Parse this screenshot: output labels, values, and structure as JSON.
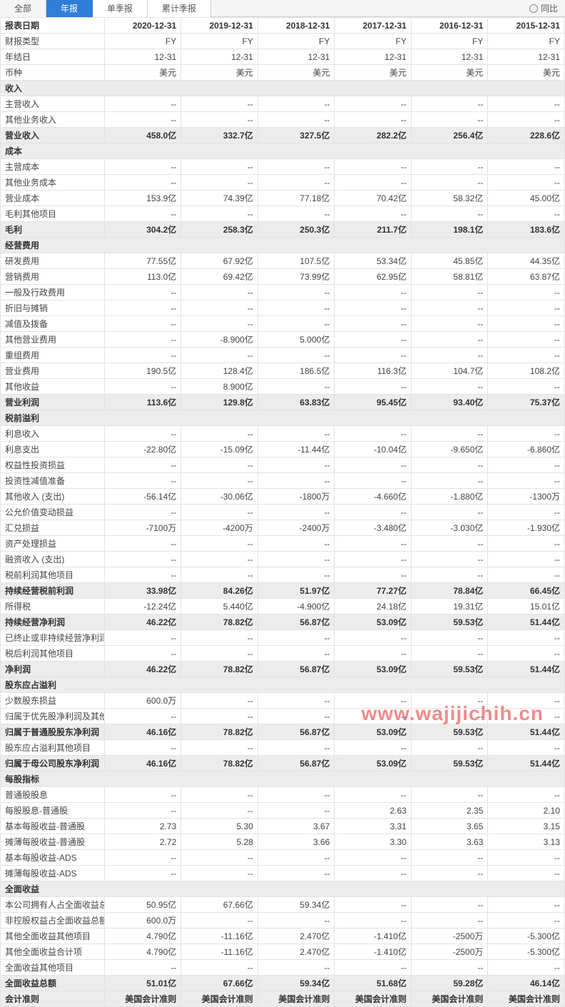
{
  "tabs": {
    "all": "全部",
    "annual": "年报",
    "single": "单季报",
    "cumulative": "累计季报"
  },
  "yoy_label": "同比",
  "watermark": "www.wajijichih.cn",
  "columns": [
    "2020-12-31",
    "2019-12-31",
    "2018-12-31",
    "2017-12-31",
    "2016-12-31",
    "2015-12-31"
  ],
  "header_label": "报表日期",
  "rows": [
    {
      "t": "r",
      "l": "财报类型",
      "v": [
        "FY",
        "FY",
        "FY",
        "FY",
        "FY",
        "FY"
      ]
    },
    {
      "t": "r",
      "l": "年结日",
      "v": [
        "12-31",
        "12-31",
        "12-31",
        "12-31",
        "12-31",
        "12-31"
      ]
    },
    {
      "t": "r",
      "l": "币种",
      "v": [
        "美元",
        "美元",
        "美元",
        "美元",
        "美元",
        "美元"
      ]
    },
    {
      "t": "s",
      "l": "收入"
    },
    {
      "t": "r",
      "l": "主营收入",
      "v": [
        "--",
        "--",
        "--",
        "--",
        "--",
        "--"
      ]
    },
    {
      "t": "r",
      "l": "其他业务收入",
      "v": [
        "--",
        "--",
        "--",
        "--",
        "--",
        "--"
      ]
    },
    {
      "t": "b",
      "l": "营业收入",
      "v": [
        "458.0亿",
        "332.7亿",
        "327.5亿",
        "282.2亿",
        "256.4亿",
        "228.6亿"
      ]
    },
    {
      "t": "s",
      "l": "成本"
    },
    {
      "t": "r",
      "l": "主营成本",
      "v": [
        "--",
        "--",
        "--",
        "--",
        "--",
        "--"
      ]
    },
    {
      "t": "r",
      "l": "其他业务成本",
      "v": [
        "--",
        "--",
        "--",
        "--",
        "--",
        "--"
      ]
    },
    {
      "t": "r",
      "l": "营业成本",
      "v": [
        "153.9亿",
        "74.39亿",
        "77.18亿",
        "70.42亿",
        "58.32亿",
        "45.00亿"
      ]
    },
    {
      "t": "r",
      "l": "毛利其他项目",
      "v": [
        "--",
        "--",
        "--",
        "--",
        "--",
        "--"
      ]
    },
    {
      "t": "b",
      "l": "毛利",
      "v": [
        "304.2亿",
        "258.3亿",
        "250.3亿",
        "211.7亿",
        "198.1亿",
        "183.6亿"
      ]
    },
    {
      "t": "s",
      "l": "经营费用"
    },
    {
      "t": "r",
      "l": "研发费用",
      "v": [
        "77.55亿",
        "67.92亿",
        "107.5亿",
        "53.34亿",
        "45.85亿",
        "44.35亿"
      ]
    },
    {
      "t": "r",
      "l": "营销费用",
      "v": [
        "113.0亿",
        "69.42亿",
        "73.99亿",
        "62.95亿",
        "58.81亿",
        "63.87亿"
      ]
    },
    {
      "t": "r",
      "l": "一般及行政费用",
      "v": [
        "--",
        "--",
        "--",
        "--",
        "--",
        "--"
      ]
    },
    {
      "t": "r",
      "l": "折旧与摊销",
      "v": [
        "--",
        "--",
        "--",
        "--",
        "--",
        "--"
      ]
    },
    {
      "t": "r",
      "l": "减值及拨备",
      "v": [
        "--",
        "--",
        "--",
        "--",
        "--",
        "--"
      ]
    },
    {
      "t": "r",
      "l": "其他营业费用",
      "v": [
        "--",
        "-8.900亿",
        "5.000亿",
        "--",
        "--",
        "--"
      ]
    },
    {
      "t": "r",
      "l": "重组费用",
      "v": [
        "--",
        "--",
        "--",
        "--",
        "--",
        "--"
      ]
    },
    {
      "t": "r",
      "l": "营业费用",
      "v": [
        "190.5亿",
        "128.4亿",
        "186.5亿",
        "116.3亿",
        "104.7亿",
        "108.2亿"
      ]
    },
    {
      "t": "r",
      "l": "其他收益",
      "v": [
        "--",
        "8.900亿",
        "--",
        "--",
        "--",
        "--"
      ]
    },
    {
      "t": "b",
      "l": "营业利润",
      "v": [
        "113.6亿",
        "129.8亿",
        "63.83亿",
        "95.45亿",
        "93.40亿",
        "75.37亿"
      ]
    },
    {
      "t": "s",
      "l": "税前溢利"
    },
    {
      "t": "r",
      "l": "利息收入",
      "v": [
        "--",
        "--",
        "--",
        "--",
        "--",
        "--"
      ]
    },
    {
      "t": "r",
      "l": "利息支出",
      "v": [
        "-22.80亿",
        "-15.09亿",
        "-11.44亿",
        "-10.04亿",
        "-9.650亿",
        "-6.860亿"
      ]
    },
    {
      "t": "r",
      "l": "权益性投资损益",
      "v": [
        "--",
        "--",
        "--",
        "--",
        "--",
        "--"
      ]
    },
    {
      "t": "r",
      "l": "投资性减值准备",
      "v": [
        "--",
        "--",
        "--",
        "--",
        "--",
        "--"
      ]
    },
    {
      "t": "r",
      "l": "其他收入 (支出)",
      "v": [
        "-56.14亿",
        "-30.06亿",
        "-1800万",
        "-4.660亿",
        "-1.880亿",
        "-1300万"
      ]
    },
    {
      "t": "r",
      "l": "公允价值变动损益",
      "v": [
        "--",
        "--",
        "--",
        "--",
        "--",
        "--"
      ]
    },
    {
      "t": "r",
      "l": "汇兑损益",
      "v": [
        "-7100万",
        "-4200万",
        "-2400万",
        "-3.480亿",
        "-3.030亿",
        "-1.930亿"
      ]
    },
    {
      "t": "r",
      "l": "资产处理损益",
      "v": [
        "--",
        "--",
        "--",
        "--",
        "--",
        "--"
      ]
    },
    {
      "t": "r",
      "l": "融资收入 (支出)",
      "v": [
        "--",
        "--",
        "--",
        "--",
        "--",
        "--"
      ]
    },
    {
      "t": "r",
      "l": "税前利润其他项目",
      "v": [
        "--",
        "--",
        "--",
        "--",
        "--",
        "--"
      ]
    },
    {
      "t": "b",
      "l": "持续经营税前利润",
      "v": [
        "33.98亿",
        "84.26亿",
        "51.97亿",
        "77.27亿",
        "78.84亿",
        "66.45亿"
      ]
    },
    {
      "t": "r",
      "l": "所得税",
      "v": [
        "-12.24亿",
        "5.440亿",
        "-4.900亿",
        "24.18亿",
        "19.31亿",
        "15.01亿"
      ]
    },
    {
      "t": "b",
      "l": "持续经营净利润",
      "v": [
        "46.22亿",
        "78.82亿",
        "56.87亿",
        "53.09亿",
        "59.53亿",
        "51.44亿"
      ]
    },
    {
      "t": "r",
      "l": "已终止或非持续经营净利润",
      "v": [
        "--",
        "--",
        "--",
        "--",
        "--",
        "--"
      ]
    },
    {
      "t": "r",
      "l": "税后利润其他项目",
      "v": [
        "--",
        "--",
        "--",
        "--",
        "--",
        "--"
      ]
    },
    {
      "t": "b",
      "l": "净利润",
      "v": [
        "46.22亿",
        "78.82亿",
        "56.87亿",
        "53.09亿",
        "59.53亿",
        "51.44亿"
      ]
    },
    {
      "t": "s",
      "l": "股东应占溢利"
    },
    {
      "t": "r",
      "l": "少数股东损益",
      "v": [
        "600.0万",
        "--",
        "--",
        "--",
        "--",
        "--"
      ]
    },
    {
      "t": "r",
      "l": "归属于优先股净利润及其他项",
      "v": [
        "--",
        "--",
        "--",
        "--",
        "--",
        "--"
      ]
    },
    {
      "t": "b",
      "l": "归属于普通股股东净利润",
      "v": [
        "46.16亿",
        "78.82亿",
        "56.87亿",
        "53.09亿",
        "59.53亿",
        "51.44亿"
      ]
    },
    {
      "t": "r",
      "l": "股东应占溢利其他项目",
      "v": [
        "--",
        "--",
        "--",
        "--",
        "--",
        "--"
      ]
    },
    {
      "t": "b",
      "l": "归属于母公司股东净利润",
      "v": [
        "46.16亿",
        "78.82亿",
        "56.87亿",
        "53.09亿",
        "59.53亿",
        "51.44亿"
      ]
    },
    {
      "t": "s",
      "l": "每股指标"
    },
    {
      "t": "r",
      "l": "普通股股息",
      "v": [
        "--",
        "--",
        "--",
        "--",
        "--",
        "--"
      ]
    },
    {
      "t": "r",
      "l": "每股股息-普通股",
      "v": [
        "--",
        "--",
        "--",
        "2.63",
        "2.35",
        "2.10"
      ]
    },
    {
      "t": "r",
      "l": "基本每股收益-普通股",
      "v": [
        "2.73",
        "5.30",
        "3.67",
        "3.31",
        "3.65",
        "3.15"
      ]
    },
    {
      "t": "r",
      "l": "摊薄每股收益-普通股",
      "v": [
        "2.72",
        "5.28",
        "3.66",
        "3.30",
        "3.63",
        "3.13"
      ]
    },
    {
      "t": "r",
      "l": "基本每股收益-ADS",
      "v": [
        "--",
        "--",
        "--",
        "--",
        "--",
        "--"
      ]
    },
    {
      "t": "r",
      "l": "摊薄每股收益-ADS",
      "v": [
        "--",
        "--",
        "--",
        "--",
        "--",
        "--"
      ]
    },
    {
      "t": "s",
      "l": "全面收益"
    },
    {
      "t": "r",
      "l": "本公司拥有人占全面收益总额",
      "v": [
        "50.95亿",
        "67.66亿",
        "59.34亿",
        "--",
        "--",
        "--"
      ]
    },
    {
      "t": "r",
      "l": "非控股权益占全面收益总额",
      "v": [
        "600.0万",
        "--",
        "--",
        "--",
        "--",
        "--"
      ]
    },
    {
      "t": "r",
      "l": "其他全面收益其他项目",
      "v": [
        "4.790亿",
        "-11.16亿",
        "2.470亿",
        "-1.410亿",
        "-2500万",
        "-5.300亿"
      ]
    },
    {
      "t": "r",
      "l": "其他全面收益合计项",
      "v": [
        "4.790亿",
        "-11.16亿",
        "2.470亿",
        "-1.410亿",
        "-2500万",
        "-5.300亿"
      ]
    },
    {
      "t": "r",
      "l": "全面收益其他项目",
      "v": [
        "--",
        "--",
        "--",
        "--",
        "--",
        "--"
      ]
    },
    {
      "t": "b",
      "l": "全面收益总额",
      "v": [
        "51.01亿",
        "67.66亿",
        "59.34亿",
        "51.68亿",
        "59.28亿",
        "46.14亿"
      ]
    },
    {
      "t": "b",
      "l": "会计准则",
      "v": [
        "美国会计准则",
        "美国会计准则",
        "美国会计准则",
        "美国会计准则",
        "美国会计准则",
        "美国会计准则"
      ]
    }
  ]
}
